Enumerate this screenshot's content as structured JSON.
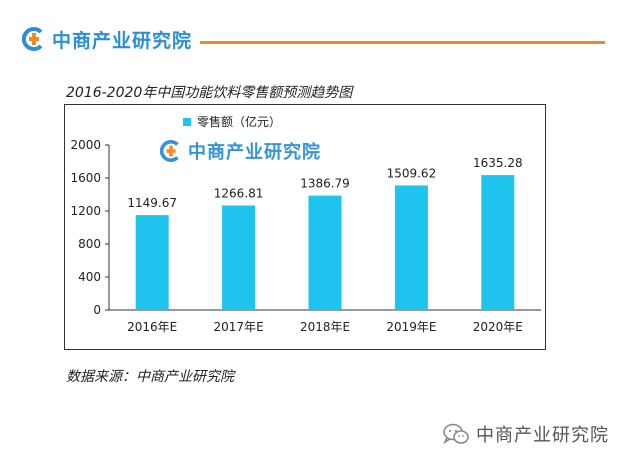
{
  "header": {
    "brand_name": "中商产业研究院",
    "accent_color": "#f08a24",
    "brand_color": "#2b8fd6"
  },
  "chart_data": {
    "type": "bar",
    "title": "2016-2020年中国功能饮料零售额预测趋势图",
    "categories": [
      "2016年E",
      "2017年E",
      "2018年E",
      "2019年E",
      "2020年E"
    ],
    "series": [
      {
        "name": "零售额（亿元）",
        "values": [
          1149.67,
          1266.81,
          1386.79,
          1509.62,
          1635.28
        ],
        "color": "#1ec3ee"
      }
    ],
    "data_labels": [
      "1149.67",
      "1266.81",
      "1386.79",
      "1509.62",
      "1635.28"
    ],
    "yticks": [
      "0",
      "400",
      "800",
      "1200",
      "1600",
      "2000"
    ],
    "ylim": [
      0,
      2000
    ],
    "legend_position": "top-left",
    "grid": false
  },
  "watermark": {
    "brand_name": "中商产业研究院"
  },
  "source": {
    "text": "数据来源：中商产业研究院"
  },
  "footer": {
    "brand_name": "中商产业研究院",
    "icon": "wechat-icon"
  }
}
